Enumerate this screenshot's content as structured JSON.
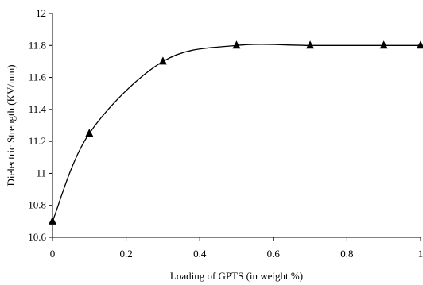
{
  "chart_data": {
    "type": "line",
    "title": "",
    "xlabel": "Loading of GPTS (in weight %)",
    "ylabel": "Dielectric Strength (KV/mm)",
    "xlim": [
      0,
      1
    ],
    "ylim": [
      10.6,
      12
    ],
    "x_ticks": [
      "0",
      "0.2",
      "0.4",
      "0.6",
      "0.8",
      "1"
    ],
    "y_ticks": [
      "10.6",
      "10.8",
      "11",
      "11.2",
      "11.4",
      "11.6",
      "11.8",
      "12"
    ],
    "grid": false,
    "legend": "none",
    "marker": "triangle",
    "line_smoothing": "smooth",
    "series": [
      {
        "color": "#000000",
        "x": [
          0,
          0.1,
          0.3,
          0.5,
          0.7,
          0.9,
          1.0
        ],
        "y": [
          10.7,
          11.25,
          11.7,
          11.8,
          11.8,
          11.8,
          11.8
        ]
      }
    ]
  }
}
